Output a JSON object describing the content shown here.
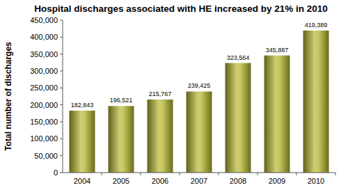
{
  "chart_data": {
    "type": "bar",
    "title": "Hospital discharges associated with HE increased by 21% in 2010",
    "y_label": "Total number of discharges",
    "categories": [
      "2004",
      "2005",
      "2006",
      "2007",
      "2008",
      "2009",
      "2010"
    ],
    "values": [
      182843,
      196521,
      215767,
      239425,
      323564,
      345887,
      419389
    ],
    "value_labels": [
      "182,843",
      "196,521",
      "215,767",
      "239,425",
      "323,564",
      "345,887",
      "419,389"
    ],
    "data_labels": true,
    "color": "#b3b32a",
    "grid": false,
    "ylim": [
      0,
      450000
    ],
    "yticks": [
      0,
      {
        "value": 50000,
        "label": "50,000"
      },
      {
        "value": 100000,
        "label": "100,000"
      },
      {
        "value": 150000,
        "label": "150,000"
      },
      {
        "value": 200000,
        "label": "200,000"
      },
      {
        "value": 250000,
        "label": "250,000"
      },
      {
        "value": 300000,
        "label": "300,000"
      },
      {
        "value": 350000,
        "label": "350,000"
      },
      {
        "value": 400000,
        "label": "400,000"
      },
      {
        "value": 450000,
        "label": "450,000"
      }
    ]
  }
}
